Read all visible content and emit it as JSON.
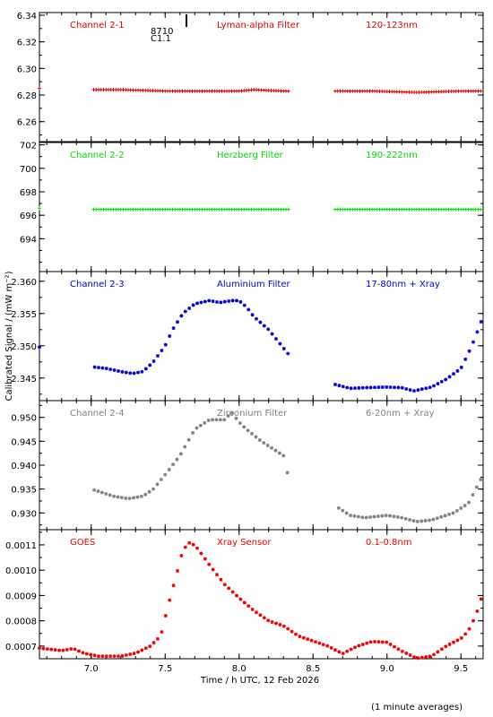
{
  "figure": {
    "xlabel": "Time / h UTC, 12 Feb 2026",
    "ylabel": "Calibrated Signal / (mW m⁻²)",
    "footnote": "(1 minute averages)",
    "marker_labels": [
      "8710",
      "C1.1"
    ]
  },
  "chart_data": {
    "type": "scatter",
    "x_range": [
      6.65,
      9.65
    ],
    "x_ticks": [
      7.0,
      7.5,
      8.0,
      8.5,
      9.0,
      9.5
    ],
    "x_tick_labels": [
      "7.0",
      "7.5",
      "8.0",
      "8.5",
      "9.0",
      "9.5"
    ],
    "panels": [
      {
        "channel": "Channel 2-1",
        "filter": "Lyman-alpha Filter",
        "band": "120-123nm",
        "color": "#dd0000",
        "marker": "plus",
        "ylim": [
          6.245,
          6.342
        ],
        "yticks": [
          6.26,
          6.28,
          6.3,
          6.32,
          6.34
        ],
        "ytick_labels": [
          "6.26",
          "6.28",
          "6.30",
          "6.32",
          "6.34"
        ],
        "points": [
          [
            6.65,
            6.285
          ],
          [
            7.0,
            6.284
          ],
          [
            7.2,
            6.284
          ],
          [
            7.5,
            6.283
          ],
          [
            7.8,
            6.283
          ],
          [
            8.0,
            6.283
          ],
          [
            8.1,
            6.284
          ],
          [
            8.3,
            6.283
          ],
          [
            8.65,
            6.283
          ],
          [
            8.9,
            6.283
          ],
          [
            9.2,
            6.282
          ],
          [
            9.5,
            6.283
          ],
          [
            9.65,
            6.283
          ]
        ],
        "gaps": [
          [
            6.66,
            7.0
          ],
          [
            8.34,
            8.65
          ]
        ]
      },
      {
        "channel": "Channel 2-2",
        "filter": "Herzberg Filter",
        "band": "190-222nm",
        "color": "#00dd00",
        "marker": "plus",
        "ylim": [
          691.2,
          702.2
        ],
        "yticks": [
          694,
          696,
          698,
          700,
          702
        ],
        "ytick_labels": [
          "694",
          "696",
          "698",
          "700",
          "702"
        ],
        "points": [
          [
            6.65,
            696.6
          ],
          [
            7.0,
            696.5
          ],
          [
            7.5,
            696.5
          ],
          [
            8.0,
            696.5
          ],
          [
            8.33,
            696.5
          ],
          [
            8.65,
            696.5
          ],
          [
            9.0,
            696.5
          ],
          [
            9.5,
            696.5
          ],
          [
            9.65,
            696.5
          ]
        ],
        "gaps": [
          [
            6.66,
            7.0
          ],
          [
            8.34,
            8.65
          ]
        ]
      },
      {
        "channel": "Channel 2-3",
        "filter": "Aluminium Filter",
        "band": "17-80nm + Xray",
        "color": "#0000cc",
        "marker": "star",
        "ylim": [
          2.3415,
          2.3615
        ],
        "yticks": [
          2.345,
          2.35,
          2.355,
          2.36
        ],
        "ytick_labels": [
          "2.345",
          "2.350",
          "2.355",
          "2.360"
        ],
        "points": [
          [
            6.65,
            2.3498
          ],
          [
            7.02,
            2.3467
          ],
          [
            7.1,
            2.3465
          ],
          [
            7.2,
            2.346
          ],
          [
            7.28,
            2.3457
          ],
          [
            7.35,
            2.346
          ],
          [
            7.42,
            2.3475
          ],
          [
            7.5,
            2.35
          ],
          [
            7.55,
            2.3525
          ],
          [
            7.62,
            2.355
          ],
          [
            7.7,
            2.3565
          ],
          [
            7.8,
            2.357
          ],
          [
            7.87,
            2.3567
          ],
          [
            7.95,
            2.357
          ],
          [
            8.0,
            2.357
          ],
          [
            8.05,
            2.356
          ],
          [
            8.1,
            2.3545
          ],
          [
            8.2,
            2.3525
          ],
          [
            8.33,
            2.3488
          ],
          [
            8.65,
            2.344
          ],
          [
            8.75,
            2.3434
          ],
          [
            8.85,
            2.3435
          ],
          [
            9.0,
            2.3436
          ],
          [
            9.1,
            2.3435
          ],
          [
            9.18,
            2.343
          ],
          [
            9.3,
            2.3436
          ],
          [
            9.4,
            2.3448
          ],
          [
            9.5,
            2.3465
          ],
          [
            9.57,
            2.3498
          ],
          [
            9.65,
            2.3545
          ]
        ],
        "gaps": [
          [
            6.66,
            7.0
          ],
          [
            8.34,
            8.65
          ]
        ]
      },
      {
        "channel": "Channel 2-4",
        "filter": "Zirconium Filter",
        "band": "6-20nm + Xray",
        "color": "#808080",
        "marker": "star",
        "ylim": [
          0.9265,
          0.9535
        ],
        "yticks": [
          0.93,
          0.935,
          0.94,
          0.945,
          0.95
        ],
        "ytick_labels": [
          "0.930",
          "0.935",
          "0.940",
          "0.945",
          "0.950"
        ],
        "points": [
          [
            7.02,
            0.9348
          ],
          [
            7.15,
            0.9335
          ],
          [
            7.25,
            0.933
          ],
          [
            7.35,
            0.9335
          ],
          [
            7.42,
            0.935
          ],
          [
            7.5,
            0.938
          ],
          [
            7.6,
            0.942
          ],
          [
            7.7,
            0.9475
          ],
          [
            7.8,
            0.9495
          ],
          [
            7.9,
            0.9495
          ],
          [
            7.95,
            0.951
          ],
          [
            8.0,
            0.949
          ],
          [
            8.05,
            0.9475
          ],
          [
            8.15,
            0.945
          ],
          [
            8.3,
            0.942
          ],
          [
            8.33,
            0.938
          ],
          [
            8.65,
            0.9315
          ],
          [
            8.75,
            0.9295
          ],
          [
            8.85,
            0.929
          ],
          [
            9.0,
            0.9295
          ],
          [
            9.1,
            0.929
          ],
          [
            9.2,
            0.9282
          ],
          [
            9.3,
            0.9285
          ],
          [
            9.45,
            0.93
          ],
          [
            9.55,
            0.932
          ],
          [
            9.65,
            0.938
          ]
        ],
        "gaps": [
          [
            6.66,
            7.0
          ],
          [
            8.34,
            8.65
          ]
        ]
      },
      {
        "channel": "GOES",
        "filter": "Xray Sensor",
        "band": "0.1-0.8nm",
        "color": "#ee0000",
        "marker": "star",
        "ylim": [
          0.00065,
          0.00116
        ],
        "yticks": [
          0.0007,
          0.0008,
          0.0009,
          0.001,
          0.0011
        ],
        "ytick_labels": [
          "0.0007",
          "0.0008",
          "0.0009",
          "0.0010",
          "0.0011"
        ],
        "points": [
          [
            6.65,
            0.000692
          ],
          [
            6.8,
            0.000682
          ],
          [
            6.88,
            0.00069
          ],
          [
            6.95,
            0.000672
          ],
          [
            7.05,
            0.00066
          ],
          [
            7.2,
            0.00066
          ],
          [
            7.3,
            0.000672
          ],
          [
            7.4,
            0.0007
          ],
          [
            7.47,
            0.00074
          ],
          [
            7.52,
            0.00086
          ],
          [
            7.58,
            0.00099
          ],
          [
            7.62,
            0.00108
          ],
          [
            7.67,
            0.001112
          ],
          [
            7.72,
            0.001085
          ],
          [
            7.8,
            0.00102
          ],
          [
            7.9,
            0.000945
          ],
          [
            8.0,
            0.00089
          ],
          [
            8.1,
            0.00084
          ],
          [
            8.2,
            0.0008
          ],
          [
            8.3,
            0.00078
          ],
          [
            8.4,
            0.00074
          ],
          [
            8.5,
            0.00072
          ],
          [
            8.6,
            0.0007
          ],
          [
            8.7,
            0.00067
          ],
          [
            8.8,
            0.0007
          ],
          [
            8.9,
            0.000718
          ],
          [
            9.0,
            0.000715
          ],
          [
            9.1,
            0.00068
          ],
          [
            9.2,
            0.000652
          ],
          [
            9.3,
            0.00066
          ],
          [
            9.4,
            0.0007
          ],
          [
            9.5,
            0.00073
          ],
          [
            9.55,
            0.00076
          ],
          [
            9.6,
            0.00082
          ],
          [
            9.65,
            0.00091
          ]
        ]
      }
    ]
  }
}
